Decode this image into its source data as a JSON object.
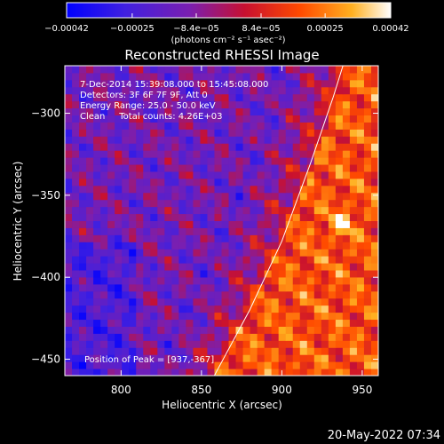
{
  "chart_data": {
    "type": "heatmap",
    "title": "Reconstructed RHESSI Image",
    "xlabel": "Heliocentric X (arcsec)",
    "ylabel": "Heliocentric Y (arcsec)",
    "xlim": [
      765,
      960
    ],
    "ylim": [
      -460,
      -271
    ],
    "x_ticks": [
      800,
      850,
      900,
      950
    ],
    "y_ticks": [
      -450,
      -400,
      -350,
      -300
    ],
    "x_tick_labels": [
      "800",
      "850",
      "900",
      "950"
    ],
    "y_tick_labels": [
      "−450",
      "−400",
      "−350",
      "−300"
    ],
    "colorbar": {
      "min": -0.00042,
      "max": 0.00042,
      "tick_values": [
        -0.00042,
        -0.00025,
        -8.4e-05,
        8.4e-05,
        0.00025,
        0.00042
      ],
      "tick_labels": [
        "−0.00042",
        "−0.00025",
        "−8.4e−05",
        "8.4e−05",
        "0.00025",
        "0.00042"
      ],
      "unit_label": "(photons cm⁻² s⁻¹ asec⁻²)",
      "colormap": "blue-purple-red-yellow-white"
    },
    "annotations": [
      "7-Dec-2014 15:39:08.000 to 15:45:08.000",
      "Detectors: 3F 6F 7F 9F, Att 0",
      "Energy Range: 25.0 - 50.0 keV",
      "Clean     Total counts: 4.26E+03"
    ],
    "peak_label": "Position of Peak = [937,-367]",
    "peak": {
      "x": 937,
      "y": -367
    },
    "limb": [
      {
        "x": 858,
        "y": -460
      },
      {
        "x": 880,
        "y": -420
      },
      {
        "x": 900,
        "y": -378
      },
      {
        "x": 918,
        "y": -330
      },
      {
        "x": 932,
        "y": -290
      },
      {
        "x": 938,
        "y": -271
      }
    ],
    "grid": false
  },
  "footer": {
    "date": "20-May-2022 07:34"
  }
}
